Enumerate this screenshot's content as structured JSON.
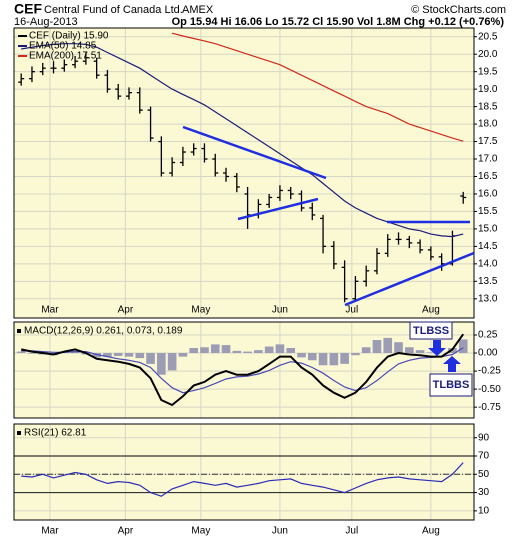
{
  "chart_data": [
    {
      "type": "ohlc",
      "title": "CEF",
      "company": "Central Fund of Canada Ltd.",
      "exchange": "AMEX",
      "source": "© StockCharts.com",
      "date": "16-Aug-2013",
      "quote": "Op 15.94 Hi 16.06 Lo 15.72 Cl 15.90 Vol 1.8M Chg +0.12 (+0.76%)",
      "x": [
        0,
        3,
        6,
        9,
        12,
        15,
        18,
        21,
        24,
        27,
        30,
        33,
        36,
        39,
        42,
        45,
        48,
        51,
        54,
        57,
        60,
        63,
        66,
        69,
        72,
        75,
        78,
        81,
        84,
        87,
        90,
        93,
        96,
        99,
        102,
        105,
        108,
        111,
        114,
        117,
        120,
        123
      ],
      "xlim": [
        -2,
        126
      ],
      "xticks": [
        {
          "value": 8,
          "label": "Mar"
        },
        {
          "value": 29,
          "label": "Apr"
        },
        {
          "value": 50,
          "label": "May"
        },
        {
          "value": 72,
          "label": "Jun"
        },
        {
          "value": 92,
          "label": "Jul"
        },
        {
          "value": 114,
          "label": "Aug"
        }
      ],
      "ylim": [
        12.45,
        20.75
      ],
      "yticks": [
        {
          "value": 13,
          "label": "13.0"
        },
        13.5,
        {
          "value": 14,
          "label": "14.0"
        },
        14.5,
        {
          "value": 15,
          "label": "15.0"
        },
        15.5,
        {
          "value": 16,
          "label": "16.0"
        },
        16.5,
        {
          "value": 17,
          "label": "17.0"
        },
        17.5,
        {
          "value": 18,
          "label": "18.0"
        },
        18.5,
        {
          "value": 19,
          "label": "19.0"
        },
        19.5,
        {
          "value": 20,
          "label": "20.0"
        },
        20.5
      ],
      "grid": true,
      "series": [
        {
          "type": "ohlc",
          "name": "CEF (Daily) 15.90",
          "color": "#000000",
          "open": [
            19.2,
            19.3,
            19.5,
            19.6,
            19.6,
            19.7,
            19.8,
            19.8,
            19.4,
            19.0,
            18.8,
            18.9,
            18.4,
            17.5,
            16.6,
            16.9,
            17.2,
            17.3,
            17.0,
            16.6,
            16.5,
            16.0,
            15.4,
            15.7,
            15.9,
            16.1,
            16.0,
            15.6,
            15.3,
            14.5,
            13.9,
            13.0,
            13.5,
            13.8,
            14.3,
            14.7,
            14.7,
            14.6,
            14.4,
            14.2,
            14.0,
            15.94
          ],
          "high": [
            19.45,
            19.65,
            19.75,
            19.8,
            19.85,
            19.95,
            20.05,
            19.9,
            19.55,
            19.15,
            19.05,
            19.05,
            18.5,
            17.65,
            17.05,
            17.35,
            17.45,
            17.45,
            17.15,
            16.75,
            16.6,
            16.2,
            15.85,
            16.0,
            16.25,
            16.2,
            16.1,
            15.75,
            15.4,
            14.65,
            14.1,
            13.65,
            13.95,
            14.45,
            14.85,
            14.9,
            14.8,
            14.7,
            14.5,
            14.3,
            14.95,
            16.06
          ],
          "low": [
            19.1,
            19.2,
            19.4,
            19.45,
            19.5,
            19.6,
            19.7,
            19.3,
            18.9,
            18.7,
            18.7,
            18.3,
            17.5,
            16.5,
            16.5,
            16.8,
            17.1,
            16.9,
            16.5,
            16.35,
            16.05,
            15.0,
            15.3,
            15.6,
            15.8,
            15.85,
            15.5,
            15.25,
            14.3,
            13.85,
            12.9,
            12.95,
            13.35,
            13.7,
            14.2,
            14.55,
            14.45,
            14.3,
            14.1,
            13.8,
            13.95,
            15.72
          ],
          "close": [
            19.3,
            19.5,
            19.6,
            19.6,
            19.7,
            19.8,
            19.9,
            19.4,
            19.0,
            18.8,
            18.9,
            18.4,
            17.6,
            16.6,
            16.9,
            17.2,
            17.3,
            17.0,
            16.6,
            16.5,
            16.2,
            15.4,
            15.7,
            15.9,
            16.1,
            16.0,
            15.6,
            15.4,
            14.5,
            14.0,
            13.0,
            13.5,
            13.8,
            14.3,
            14.7,
            14.7,
            14.6,
            14.4,
            14.2,
            14.0,
            14.8,
            15.9
          ]
        },
        {
          "type": "line",
          "name": "EMA(50) 14.85",
          "color": "#1c1c7a",
          "values": [
            20.15,
            20.2,
            20.25,
            20.28,
            20.3,
            20.3,
            20.28,
            20.2,
            20.05,
            19.9,
            19.75,
            19.6,
            19.4,
            19.2,
            19.0,
            18.85,
            18.7,
            18.55,
            18.35,
            18.15,
            17.95,
            17.75,
            17.55,
            17.35,
            17.15,
            16.95,
            16.75,
            16.55,
            16.3,
            16.05,
            15.8,
            15.6,
            15.45,
            15.3,
            15.2,
            15.1,
            15.0,
            14.95,
            14.85,
            14.8,
            14.78,
            14.85
          ]
        },
        {
          "type": "line",
          "name": "EMA(200) 17.51",
          "color": "#d12a1a",
          "values": [
            null,
            null,
            null,
            null,
            null,
            null,
            null,
            null,
            null,
            null,
            null,
            null,
            null,
            null,
            20.6,
            20.52,
            20.45,
            20.38,
            20.3,
            20.2,
            20.1,
            20.0,
            19.9,
            19.8,
            19.7,
            19.55,
            19.4,
            19.25,
            19.1,
            18.95,
            18.8,
            18.65,
            18.5,
            18.4,
            18.3,
            18.15,
            18.0,
            17.9,
            17.8,
            17.7,
            17.6,
            17.51
          ]
        }
      ]
    },
    {
      "type": "macd",
      "title": "MACD(12,26,9) 0.261, 0.073, 0.189",
      "annotations": [
        "TLBSS",
        "TLBBS"
      ],
      "x": [
        0,
        3,
        6,
        9,
        12,
        15,
        18,
        21,
        24,
        27,
        30,
        33,
        36,
        39,
        42,
        45,
        48,
        51,
        54,
        57,
        60,
        63,
        66,
        69,
        72,
        75,
        78,
        81,
        84,
        87,
        90,
        93,
        96,
        99,
        102,
        105,
        108,
        111,
        114,
        117,
        120,
        123
      ],
      "xlim": [
        -2,
        126
      ],
      "xticks": [
        8,
        29,
        50,
        72,
        92,
        114
      ],
      "ylim": [
        -0.9,
        0.43
      ],
      "yticks": [
        0.25,
        {
          "value": 0,
          "label": "0.00"
        },
        -0.25,
        {
          "value": -0.5,
          "label": "-0.50"
        },
        -0.75
      ],
      "grid": true,
      "series": [
        {
          "type": "histogram",
          "color": "#9c9cb4",
          "values": [
            0.02,
            -0.01,
            -0.02,
            -0.03,
            0.01,
            0.03,
            -0.02,
            -0.06,
            -0.05,
            -0.04,
            -0.05,
            -0.07,
            -0.15,
            -0.3,
            -0.24,
            -0.05,
            0.07,
            0.08,
            0.12,
            0.11,
            0.03,
            0.02,
            0.04,
            0.09,
            0.12,
            0.07,
            -0.06,
            -0.1,
            -0.17,
            -0.17,
            -0.15,
            -0.03,
            0.08,
            0.18,
            0.21,
            0.15,
            0.08,
            0.04,
            0.01,
            0,
            0.07,
            0.189
          ]
        },
        {
          "type": "line",
          "color": "#4a4ab8",
          "values": [
            0.03,
            0.03,
            0.02,
            0.01,
            0.01,
            0.02,
            0.02,
            -0.02,
            -0.05,
            -0.08,
            -0.1,
            -0.13,
            -0.2,
            -0.35,
            -0.48,
            -0.55,
            -0.52,
            -0.48,
            -0.42,
            -0.36,
            -0.33,
            -0.32,
            -0.29,
            -0.24,
            -0.17,
            -0.12,
            -0.14,
            -0.2,
            -0.28,
            -0.38,
            -0.47,
            -0.52,
            -0.48,
            -0.38,
            -0.26,
            -0.15,
            -0.1,
            -0.07,
            -0.06,
            -0.05,
            -0.02,
            0.073
          ]
        },
        {
          "type": "line",
          "color": "#000000",
          "width": 2,
          "values": [
            0.05,
            0.02,
            0,
            -0.02,
            0.02,
            0.05,
            0,
            -0.08,
            -0.1,
            -0.12,
            -0.15,
            -0.2,
            -0.35,
            -0.65,
            -0.72,
            -0.6,
            -0.45,
            -0.4,
            -0.3,
            -0.25,
            -0.3,
            -0.3,
            -0.25,
            -0.15,
            -0.05,
            -0.05,
            -0.2,
            -0.3,
            -0.45,
            -0.55,
            -0.62,
            -0.55,
            -0.4,
            -0.2,
            -0.05,
            0,
            -0.02,
            -0.03,
            -0.05,
            -0.05,
            0.05,
            0.261
          ]
        }
      ]
    },
    {
      "type": "rsi",
      "title": "RSI(21) 62.81",
      "x": [
        0,
        3,
        6,
        9,
        12,
        15,
        18,
        21,
        24,
        27,
        30,
        33,
        36,
        39,
        42,
        45,
        48,
        51,
        54,
        57,
        60,
        63,
        66,
        69,
        72,
        75,
        78,
        81,
        84,
        87,
        90,
        93,
        96,
        99,
        102,
        105,
        108,
        111,
        114,
        117,
        120,
        123
      ],
      "xlim": [
        -2,
        126
      ],
      "xticks": [
        {
          "value": 8,
          "label": "Mar"
        },
        {
          "value": 29,
          "label": "Apr"
        },
        {
          "value": 50,
          "label": "May"
        },
        {
          "value": 72,
          "label": "Jun"
        },
        {
          "value": 92,
          "label": "Jul"
        },
        {
          "value": 114,
          "label": "Aug"
        }
      ],
      "ylim": [
        0,
        105
      ],
      "yticks": [
        90,
        70,
        50,
        30,
        10
      ],
      "bands": [
        70,
        30
      ],
      "midline": 50,
      "grid": true,
      "series": [
        {
          "type": "line",
          "color": "#2a2ab8",
          "values": [
            48,
            47,
            50,
            46,
            49,
            52,
            50,
            44,
            40,
            42,
            41,
            38,
            30,
            26,
            34,
            38,
            42,
            40,
            38,
            40,
            36,
            38,
            40,
            43,
            44,
            45,
            40,
            38,
            36,
            33,
            30,
            35,
            40,
            44,
            46,
            47,
            45,
            44,
            43,
            42,
            50,
            62.81
          ]
        }
      ]
    }
  ]
}
